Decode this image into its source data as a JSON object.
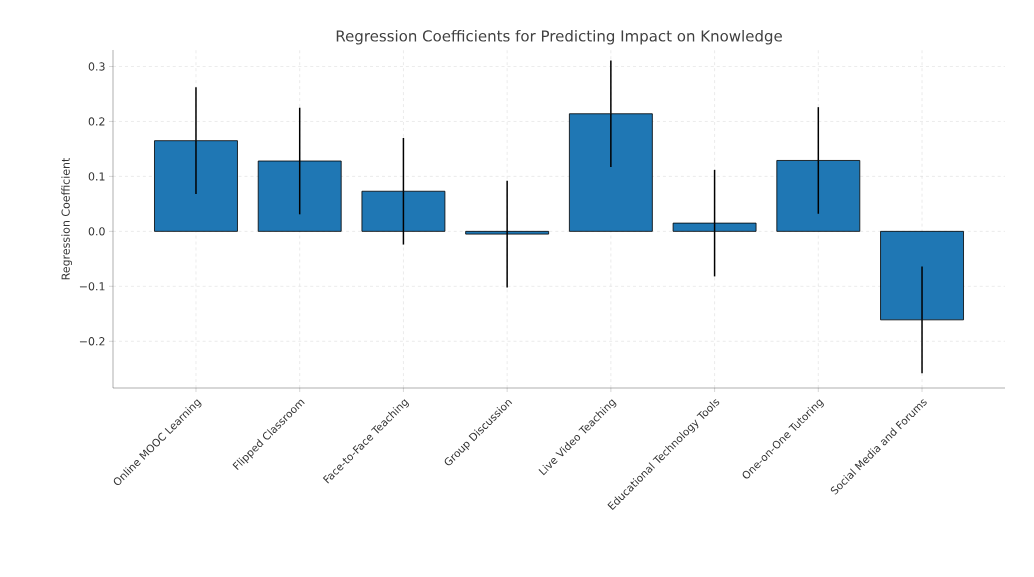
{
  "chart_data": {
    "type": "bar",
    "title": "Regression Coefficients for Predicting Impact on Knowledge",
    "ylabel": "Regression Coefficient",
    "categories": [
      "Online MOOC Learning",
      "Flipped Classroom",
      "Face-to-Face Teaching",
      "Group Discussion",
      "Live Video Teaching",
      "Educational Technology Tools",
      "One-on-One Tutoring",
      "Social Media and Forums"
    ],
    "values": [
      0.165,
      0.128,
      0.073,
      -0.005,
      0.214,
      0.015,
      0.129,
      -0.161
    ],
    "errors": [
      0.097,
      0.097,
      0.097,
      0.097,
      0.097,
      0.097,
      0.097,
      0.097
    ],
    "color": "#1f77b4",
    "ylim": [
      -0.285,
      0.33
    ],
    "yticks": [
      {
        "value": -0.2,
        "label": "−0.2"
      },
      {
        "value": -0.1,
        "label": "−0.1"
      },
      {
        "value": 0.0,
        "label": "0.0"
      },
      {
        "value": 0.1,
        "label": "0.1"
      },
      {
        "value": 0.2,
        "label": "0.2"
      },
      {
        "value": 0.3,
        "label": "0.3"
      }
    ],
    "grid": true
  }
}
